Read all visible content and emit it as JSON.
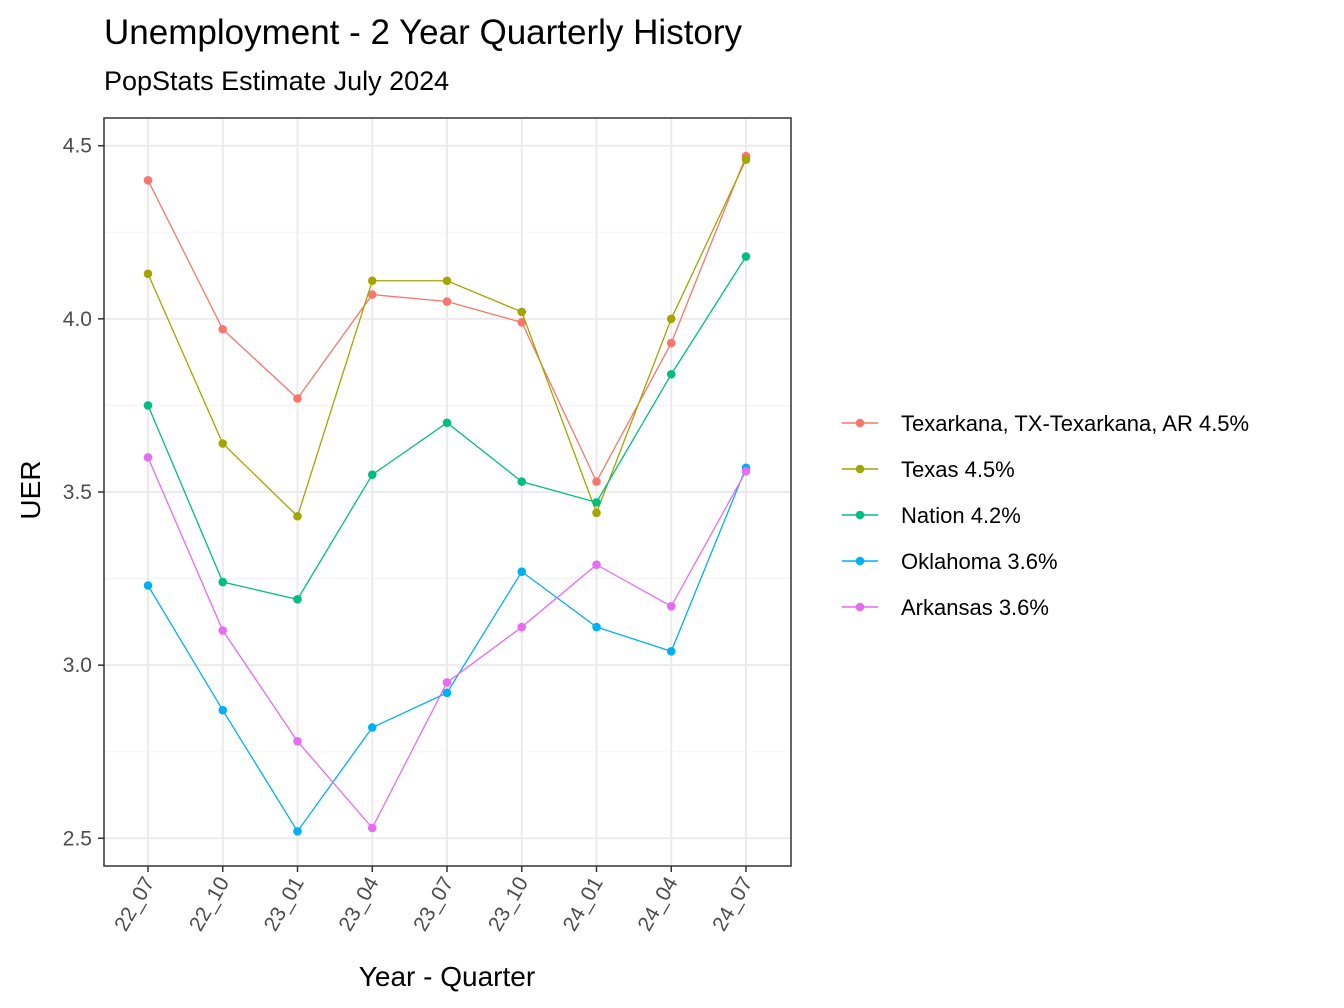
{
  "chart_data": {
    "type": "line",
    "title": "Unemployment - 2 Year Quarterly History",
    "subtitle": "PopStats Estimate July 2024",
    "xlabel": "Year - Quarter",
    "ylabel": "UER",
    "categories": [
      "22_07",
      "22_10",
      "23_01",
      "23_04",
      "23_07",
      "23_10",
      "24_01",
      "24_04",
      "24_07"
    ],
    "y_ticks": [
      "2.5",
      "3.0",
      "3.5",
      "4.0",
      "4.5"
    ],
    "ylim": [
      2.42,
      4.58
    ],
    "grid": true,
    "legend_position": "right",
    "series": [
      {
        "name": "Texarkana, TX-Texarkana, AR 4.5%",
        "color": "#F8766D",
        "values": [
          4.4,
          3.97,
          3.77,
          4.07,
          4.05,
          3.99,
          3.53,
          3.93,
          4.47
        ]
      },
      {
        "name": "Texas 4.5%",
        "color": "#A3A500",
        "values": [
          4.13,
          3.64,
          3.43,
          4.11,
          4.11,
          4.02,
          3.44,
          4.0,
          4.46
        ]
      },
      {
        "name": "Nation 4.2%",
        "color": "#00BF7D",
        "values": [
          3.75,
          3.24,
          3.19,
          3.55,
          3.7,
          3.53,
          3.47,
          3.84,
          4.18
        ]
      },
      {
        "name": "Oklahoma 3.6%",
        "color": "#00B0F6",
        "values": [
          3.23,
          2.87,
          2.52,
          2.82,
          2.92,
          3.27,
          3.11,
          3.04,
          3.57
        ]
      },
      {
        "name": "Arkansas 3.6%",
        "color": "#E76BF3",
        "values": [
          3.6,
          3.1,
          2.78,
          2.53,
          2.95,
          3.11,
          3.29,
          3.17,
          3.56
        ]
      }
    ]
  }
}
